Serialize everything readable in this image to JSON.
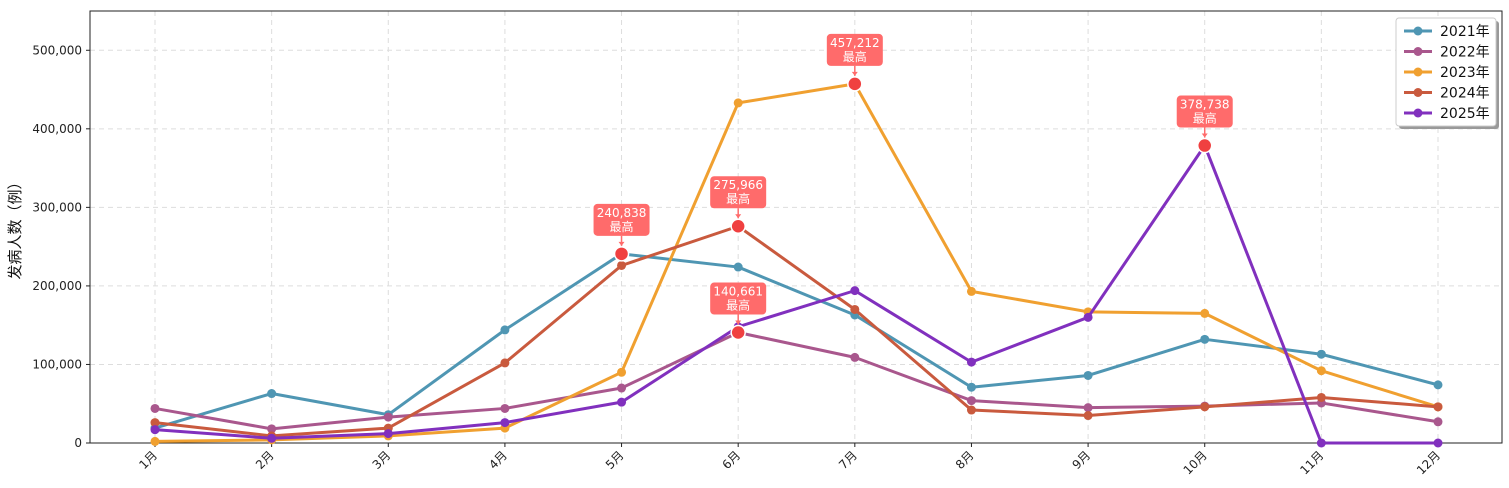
{
  "chart_data": {
    "type": "line",
    "title": "",
    "xlabel": "",
    "ylabel": "发病人数（例）",
    "categories": [
      "1月",
      "2月",
      "3月",
      "4月",
      "5月",
      "6月",
      "7月",
      "8月",
      "9月",
      "10月",
      "11月",
      "12月"
    ],
    "ylim": [
      0,
      550000
    ],
    "yticks": [
      0,
      100000,
      200000,
      300000,
      400000,
      500000
    ],
    "ytick_labels": [
      "0",
      "100,000",
      "200,000",
      "300,000",
      "400,000",
      "500,000"
    ],
    "grid": true,
    "legend_position": "top-right",
    "series": [
      {
        "name": "2021年",
        "color": "#4f96b3",
        "values": [
          19000,
          63000,
          36000,
          144000,
          240838,
          224000,
          163000,
          71000,
          86000,
          132000,
          113000,
          74000
        ]
      },
      {
        "name": "2022年",
        "color": "#a9578d",
        "values": [
          44000,
          18000,
          33000,
          44000,
          70000,
          140661,
          109000,
          54000,
          45000,
          47000,
          51000,
          27000
        ]
      },
      {
        "name": "2023年",
        "color": "#f0a030",
        "values": [
          2000,
          4000,
          9000,
          19000,
          90000,
          433000,
          457212,
          193000,
          167000,
          165000,
          92000,
          46000
        ]
      },
      {
        "name": "2024年",
        "color": "#c95a3e",
        "values": [
          26000,
          9000,
          19000,
          102000,
          226000,
          275966,
          170000,
          42000,
          35000,
          46000,
          58000,
          46000
        ]
      },
      {
        "name": "2025年",
        "color": "#8130be",
        "values": [
          17000,
          6000,
          12000,
          26000,
          52000,
          148000,
          194000,
          103000,
          160000,
          378738,
          0,
          0
        ]
      }
    ],
    "annotations": [
      {
        "series": "2021年",
        "category": "5月",
        "value_text": "240,838",
        "label": "最高"
      },
      {
        "series": "2022年",
        "category": "6月",
        "value_text": "140,661",
        "label": "最高"
      },
      {
        "series": "2023年",
        "category": "7月",
        "value_text": "457,212",
        "label": "最高"
      },
      {
        "series": "2024年",
        "category": "6月",
        "value_text": "275,966",
        "label": "最高"
      },
      {
        "series": "2025年",
        "category": "10月",
        "value_text": "378,738",
        "label": "最高"
      }
    ],
    "annotation_color": "#ff6b6b",
    "peak_marker_color": "#f04040"
  }
}
